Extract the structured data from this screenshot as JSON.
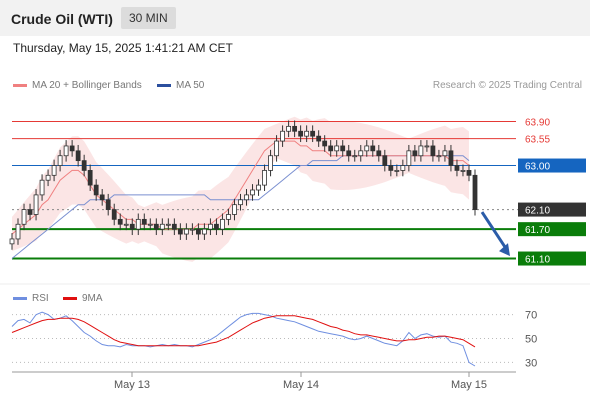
{
  "header": {
    "title": "Crude Oil (WTI)",
    "timeframe": "30 MIN"
  },
  "datetime": "Thursday, May 15, 2025 1:41:21 AM CET",
  "legend": {
    "ma20": {
      "label": "MA 20 + Bollinger Bands",
      "color": "#f08080"
    },
    "ma50": {
      "label": "MA 50",
      "color": "#2b4f9e"
    },
    "rsi": {
      "label": "RSI",
      "color": "#6f8fe0"
    },
    "rsi_ma": {
      "label": "9MA",
      "color": "#e01010"
    }
  },
  "credit": "Research © 2025 Trading Central",
  "chart_data": [
    {
      "type": "candlestick",
      "ylim": [
        60.6,
        64.4
      ],
      "x_labels": [
        "May 13",
        "May 14",
        "May 15"
      ],
      "levels": [
        {
          "value": 63.9,
          "label": "63.90",
          "kind": "resistance",
          "color": "#e53935"
        },
        {
          "value": 63.55,
          "label": "63.55",
          "kind": "resistance",
          "color": "#e53935"
        },
        {
          "value": 63.0,
          "label": "63.00",
          "kind": "pivot",
          "color": "#1565c0"
        },
        {
          "value": 62.1,
          "label": "62.10",
          "kind": "last",
          "color": "#333333"
        },
        {
          "value": 61.7,
          "label": "61.70",
          "kind": "support",
          "color": "#0a7d0a"
        },
        {
          "value": 61.1,
          "label": "61.10",
          "kind": "support",
          "color": "#0a7d0a"
        }
      ],
      "close": [
        61.5,
        61.8,
        62.1,
        62.0,
        62.4,
        62.7,
        62.8,
        63.0,
        63.2,
        63.4,
        63.3,
        63.1,
        62.9,
        62.6,
        62.4,
        62.3,
        62.1,
        61.9,
        61.8,
        61.8,
        61.7,
        61.9,
        61.8,
        61.8,
        61.7,
        61.8,
        61.8,
        61.7,
        61.6,
        61.7,
        61.7,
        61.6,
        61.7,
        61.8,
        61.7,
        61.9,
        62.0,
        62.2,
        62.3,
        62.4,
        62.5,
        62.6,
        62.9,
        63.2,
        63.5,
        63.7,
        63.8,
        63.7,
        63.6,
        63.7,
        63.6,
        63.5,
        63.4,
        63.3,
        63.4,
        63.3,
        63.2,
        63.2,
        63.3,
        63.4,
        63.3,
        63.2,
        63.0,
        62.9,
        62.9,
        63.0,
        63.3,
        63.2,
        63.4,
        63.4,
        63.2,
        63.2,
        63.3,
        63.0,
        62.9,
        62.9,
        62.8,
        62.1
      ],
      "ma20": [
        61.6,
        61.7,
        61.8,
        61.9,
        62.0,
        62.2,
        62.3,
        62.5,
        62.7,
        62.8,
        62.9,
        62.9,
        62.8,
        62.6,
        62.4,
        62.3,
        62.2,
        62.1,
        62.0,
        61.9,
        61.9,
        61.8,
        61.8,
        61.8,
        61.8,
        61.7,
        61.7,
        61.7,
        61.7,
        61.7,
        61.7,
        61.8,
        61.8,
        61.8,
        61.9,
        62.0,
        62.1,
        62.3,
        62.5,
        62.7,
        62.9,
        63.1,
        63.3,
        63.4,
        63.5,
        63.5,
        63.5,
        63.5,
        63.4,
        63.4,
        63.3,
        63.3,
        63.3,
        63.2,
        63.2,
        63.2,
        63.2,
        63.2,
        63.2,
        63.2,
        63.2,
        63.2,
        63.2,
        63.2,
        63.2,
        63.2,
        63.2,
        63.2,
        63.2,
        63.2,
        63.2,
        63.2,
        63.2,
        63.1,
        63.1,
        63.1,
        63.0
      ],
      "ma50": [
        61.1,
        61.2,
        61.3,
        61.4,
        61.5,
        61.6,
        61.7,
        61.8,
        61.9,
        62.0,
        62.1,
        62.2,
        62.2,
        62.3,
        62.3,
        62.3,
        62.3,
        62.4,
        62.4,
        62.4,
        62.4,
        62.4,
        62.4,
        62.4,
        62.4,
        62.4,
        62.4,
        62.4,
        62.4,
        62.4,
        62.4,
        62.4,
        62.4,
        62.3,
        62.3,
        62.3,
        62.3,
        62.3,
        62.3,
        62.3,
        62.3,
        62.3,
        62.4,
        62.5,
        62.6,
        62.7,
        62.8,
        62.9,
        63.0,
        63.0,
        63.1,
        63.1,
        63.1,
        63.1,
        63.1,
        63.2,
        63.2,
        63.2,
        63.2,
        63.2,
        63.2,
        63.2,
        63.2,
        63.2,
        63.2,
        63.2,
        63.2,
        63.2,
        63.2,
        63.2,
        63.2,
        63.2,
        63.2,
        63.2,
        63.2,
        63.2,
        63.1
      ]
    },
    {
      "type": "line",
      "ylim": [
        22,
        78
      ],
      "ticks": [
        70,
        50,
        30
      ],
      "series": [
        {
          "name": "RSI",
          "values": [
            60,
            65,
            66,
            63,
            70,
            72,
            70,
            66,
            67,
            69,
            65,
            60,
            55,
            52,
            48,
            45,
            44,
            44,
            43,
            45,
            44,
            44,
            44,
            43,
            44,
            45,
            44,
            45,
            44,
            44,
            43,
            45,
            47,
            49,
            52,
            56,
            60,
            64,
            68,
            70,
            71,
            71,
            70,
            69,
            67,
            66,
            65,
            64,
            62,
            60,
            58,
            56,
            55,
            54,
            53,
            52,
            50,
            49,
            50,
            52,
            50,
            48,
            46,
            45,
            44,
            48,
            55,
            50,
            53,
            54,
            52,
            51,
            52,
            47,
            46,
            44,
            30,
            27
          ]
        },
        {
          "name": "9MA",
          "values": [
            55,
            57,
            59,
            61,
            63,
            65,
            66,
            66,
            67,
            67,
            67,
            66,
            64,
            61,
            58,
            55,
            52,
            49,
            47,
            46,
            45,
            44,
            44,
            44,
            44,
            44,
            44,
            44,
            44,
            44,
            44,
            44,
            45,
            46,
            47,
            49,
            51,
            54,
            57,
            60,
            63,
            65,
            67,
            68,
            69,
            69,
            69,
            69,
            68,
            67,
            66,
            64,
            62,
            60,
            59,
            57,
            56,
            54,
            53,
            53,
            52,
            51,
            50,
            49,
            48,
            48,
            49,
            49,
            50,
            51,
            51,
            52,
            52,
            51,
            50,
            49,
            46,
            43
          ]
        }
      ]
    }
  ]
}
